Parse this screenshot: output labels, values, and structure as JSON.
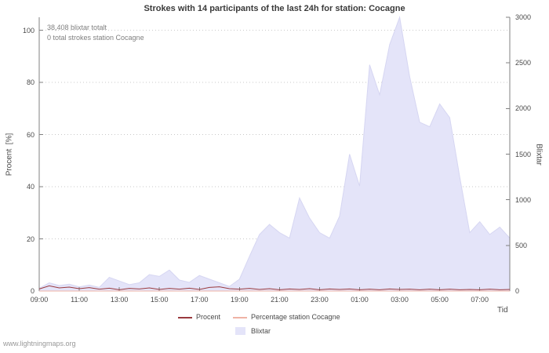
{
  "title": "Strokes with 14 participants of the last 24h for station: Cocagne",
  "annotations": {
    "total_strokes": "38,408 blixtar totalt",
    "station_strokes": "0 total strokes station Cocagne"
  },
  "axes": {
    "left_label": "Procent  [%]",
    "right_label": "Blixtar",
    "x_label": "Tid"
  },
  "legend": [
    {
      "label": "Procent",
      "color": "#9a3a3e",
      "type": "line"
    },
    {
      "label": "Percentage station Cocagne",
      "color": "#efb3a5",
      "type": "line"
    },
    {
      "label": "Blixtar",
      "color": "#e4e4f9",
      "type": "area"
    }
  ],
  "watermark": "www.lightningmaps.org",
  "colors": {
    "grid": "#c9c9c9",
    "axis": "#808080",
    "area_fill": "#e4e4f9",
    "area_edge": "#d6d6f2",
    "procent_line": "#9a3a3e",
    "station_line": "#efb3a5"
  },
  "chart_data": {
    "type": "area",
    "title": "Strokes with 14 participants of the last 24h for station: Cocagne",
    "xlabel": "Tid",
    "grid": true,
    "legend_position": "bottom",
    "x": [
      "09:00",
      "09:30",
      "10:00",
      "10:30",
      "11:00",
      "11:30",
      "12:00",
      "12:30",
      "13:00",
      "13:30",
      "14:00",
      "14:30",
      "15:00",
      "15:30",
      "16:00",
      "16:30",
      "17:00",
      "17:30",
      "18:00",
      "18:30",
      "19:00",
      "19:30",
      "20:00",
      "20:30",
      "21:00",
      "21:30",
      "22:00",
      "22:30",
      "23:00",
      "23:30",
      "00:00",
      "00:30",
      "01:00",
      "01:30",
      "02:00",
      "02:30",
      "03:00",
      "03:30",
      "04:00",
      "04:30",
      "05:00",
      "05:30",
      "06:00",
      "06:30",
      "07:00",
      "07:30",
      "08:00",
      "08:30"
    ],
    "x_tick_labels": [
      "09:00",
      "11:00",
      "13:00",
      "15:00",
      "17:00",
      "19:00",
      "21:00",
      "23:00",
      "01:00",
      "03:00",
      "05:00",
      "07:00"
    ],
    "left_axis": {
      "label": "Procent [%]",
      "ticks": [
        0,
        20,
        40,
        60,
        80,
        100
      ],
      "range": [
        0,
        105
      ]
    },
    "right_axis": {
      "label": "Blixtar",
      "ticks": [
        0,
        500,
        1000,
        1500,
        2000,
        2500,
        3000
      ],
      "range": [
        0,
        3000
      ]
    },
    "series": [
      {
        "name": "Blixtar",
        "type": "area",
        "axis": "right",
        "color": "#e4e4f9",
        "values": [
          30,
          90,
          60,
          75,
          45,
          65,
          40,
          150,
          110,
          70,
          90,
          180,
          160,
          230,
          120,
          95,
          170,
          130,
          90,
          50,
          130,
          380,
          620,
          730,
          640,
          580,
          1020,
          800,
          640,
          580,
          820,
          1500,
          1150,
          2480,
          2150,
          2700,
          3000,
          2350,
          1850,
          1800,
          2050,
          1900,
          1250,
          640,
          760,
          620,
          700,
          580
        ]
      },
      {
        "name": "Procent",
        "type": "line",
        "axis": "left",
        "color": "#9a3a3e",
        "values": [
          0.8,
          2.0,
          1.2,
          1.5,
          0.9,
          1.3,
          0.7,
          1.1,
          0.5,
          1.0,
          0.8,
          1.2,
          0.6,
          1.0,
          0.7,
          1.1,
          0.6,
          1.4,
          1.6,
          0.9,
          0.7,
          1.0,
          0.6,
          0.9,
          0.5,
          0.8,
          0.6,
          0.9,
          0.5,
          0.8,
          0.6,
          0.8,
          0.5,
          0.7,
          0.5,
          0.8,
          0.6,
          0.7,
          0.5,
          0.7,
          0.5,
          0.7,
          0.5,
          0.6,
          0.5,
          0.7,
          0.5,
          0.6
        ]
      },
      {
        "name": "Percentage station Cocagne",
        "type": "line",
        "axis": "left",
        "color": "#efb3a5",
        "values": [
          0,
          0,
          0,
          0,
          0,
          0,
          0,
          0,
          0,
          0,
          0,
          0,
          0,
          0,
          0,
          0,
          0,
          0,
          0,
          0,
          0,
          0,
          0,
          0,
          0,
          0,
          0,
          0,
          0,
          0,
          0,
          0,
          0,
          0,
          0,
          0,
          0,
          0,
          0,
          0,
          0,
          0,
          0,
          0,
          0,
          0,
          0,
          0
        ]
      }
    ]
  }
}
